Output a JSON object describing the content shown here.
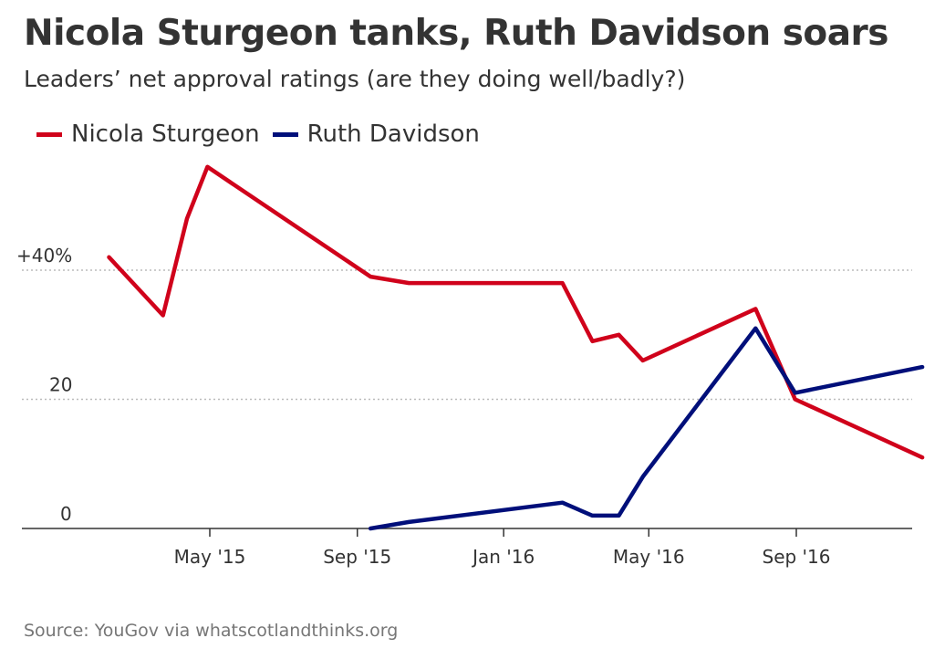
{
  "title": "Nicola Sturgeon tanks, Ruth Davidson soars",
  "subtitle": "Leaders’ net approval ratings (are they doing well/badly?)",
  "source": "Source: YouGov via whatscotlandthinks.org",
  "colors": {
    "sturgeon": "#d0021b",
    "davidson": "#000f7a",
    "grid": "#bbbbbb",
    "axis": "#333333"
  },
  "chart_data": {
    "type": "line",
    "title": "Nicola Sturgeon tanks, Ruth Davidson soars",
    "subtitle": "Leaders’ net approval ratings (are they doing well/badly?)",
    "xlabel": "",
    "ylabel": "",
    "x_ticks": [
      {
        "date": "2015-05-01",
        "label": "May '15"
      },
      {
        "date": "2015-09-01",
        "label": "Sep '15"
      },
      {
        "date": "2016-01-01",
        "label": "Jan '16"
      },
      {
        "date": "2016-05-01",
        "label": "May '16"
      },
      {
        "date": "2016-09-01",
        "label": "Sep '16"
      }
    ],
    "y_ticks": [
      {
        "value": 0,
        "label": "0"
      },
      {
        "value": 20,
        "label": "20"
      },
      {
        "value": 40,
        "label": "+40%"
      }
    ],
    "ylim": [
      0,
      56
    ],
    "xlim": [
      "2015-01-27",
      "2016-12-31"
    ],
    "grid": true,
    "legend_position": "top-left",
    "series": [
      {
        "name": "Nicola Sturgeon",
        "color": "#d0021b",
        "points": [
          {
            "x": "2015-02-06",
            "y": 42
          },
          {
            "x": "2015-03-23",
            "y": 33
          },
          {
            "x": "2015-04-12",
            "y": 48
          },
          {
            "x": "2015-04-29",
            "y": 56
          },
          {
            "x": "2015-09-12",
            "y": 39
          },
          {
            "x": "2015-10-14",
            "y": 38
          },
          {
            "x": "2016-02-19",
            "y": 38
          },
          {
            "x": "2016-03-15",
            "y": 29
          },
          {
            "x": "2016-04-06",
            "y": 30
          },
          {
            "x": "2016-04-26",
            "y": 26
          },
          {
            "x": "2016-07-29",
            "y": 34
          },
          {
            "x": "2016-08-31",
            "y": 20
          },
          {
            "x": "2016-12-15",
            "y": 11
          }
        ]
      },
      {
        "name": "Ruth Davidson",
        "color": "#000f7a",
        "points": [
          {
            "x": "2015-09-12",
            "y": 0
          },
          {
            "x": "2015-10-14",
            "y": 1
          },
          {
            "x": "2016-02-19",
            "y": 4
          },
          {
            "x": "2016-03-15",
            "y": 2
          },
          {
            "x": "2016-04-06",
            "y": 2
          },
          {
            "x": "2016-04-26",
            "y": 8
          },
          {
            "x": "2016-07-29",
            "y": 31
          },
          {
            "x": "2016-08-31",
            "y": 21
          },
          {
            "x": "2016-12-15",
            "y": 25
          }
        ]
      }
    ]
  }
}
